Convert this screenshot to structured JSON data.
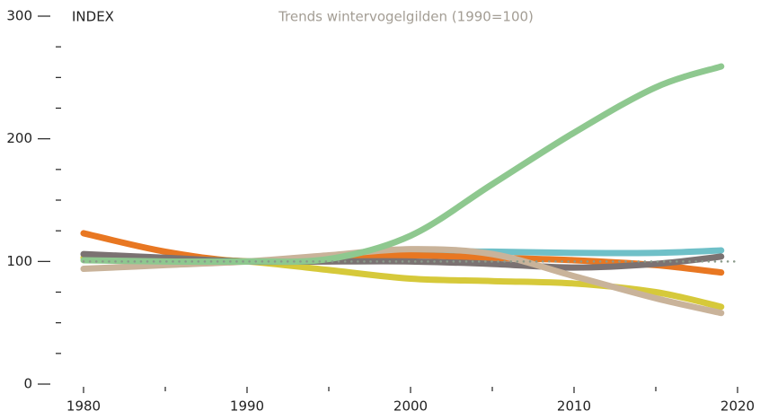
{
  "chart_data": {
    "type": "line",
    "title": "Trends wintervogelgilden (1990=100)",
    "y_label": "INDEX",
    "x": [
      1980,
      1985,
      1990,
      1995,
      2000,
      2005,
      2010,
      2015,
      2019
    ],
    "series": [
      {
        "color": "#6fc0c8",
        "values": [
          103,
          101,
          100,
          104,
          108,
          108,
          107,
          107,
          109
        ]
      },
      {
        "color": "#e87722",
        "values": [
          123,
          108,
          100,
          104,
          105,
          103,
          101,
          97,
          91
        ]
      },
      {
        "color": "#d6c93a",
        "values": [
          103,
          102,
          100,
          93,
          86,
          84,
          82,
          75,
          63
        ]
      },
      {
        "color": "#7b7272",
        "values": [
          106,
          103,
          100,
          100,
          100,
          98,
          95,
          98,
          104
        ]
      },
      {
        "color": "#c9b39a",
        "values": [
          94,
          97,
          100,
          105,
          110,
          106,
          88,
          70,
          58
        ]
      },
      {
        "color": "#8ec88f",
        "values": [
          101,
          100,
          100,
          102,
          121,
          163,
          205,
          242,
          259
        ]
      }
    ],
    "reference_line": {
      "value": 100,
      "color": "#8a9a8a"
    },
    "xlim": [
      1980,
      2020
    ],
    "xticks": [
      1980,
      1990,
      2000,
      2010,
      2020
    ],
    "xminor_ticks": [
      1985,
      1995,
      2005,
      2015
    ],
    "ylim": [
      0,
      300
    ],
    "yticks": [
      0,
      100,
      200,
      300
    ],
    "yminor_ticks": [
      25,
      50,
      75,
      125,
      150,
      175,
      225,
      250,
      275
    ]
  }
}
